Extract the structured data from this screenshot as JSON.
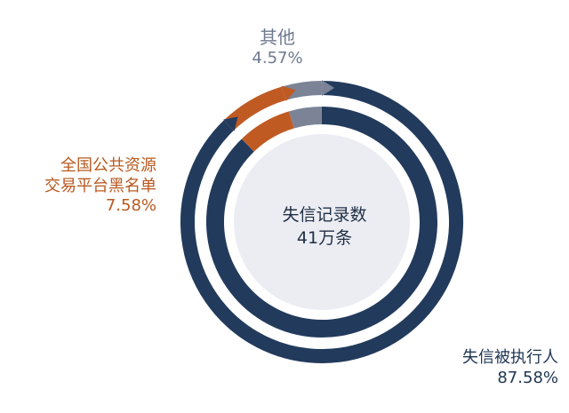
{
  "chart_data": {
    "type": "donut",
    "center_label": "失信记录数",
    "center_value": "41万条",
    "slices": [
      {
        "name": "失信被执行人",
        "percent_label": "87.58%",
        "value": 87.58,
        "color": "#223b5c"
      },
      {
        "name": "全国公共资源交易平台黑名单",
        "name_lines": [
          "全国公共资源",
          "交易平台黑名单"
        ],
        "percent_label": "7.58%",
        "value": 7.58,
        "color": "#c05a23"
      },
      {
        "name": "其他",
        "percent_label": "4.57%",
        "value": 4.57,
        "color": "#7c8396"
      }
    ],
    "track_color": "#dcdee8"
  }
}
